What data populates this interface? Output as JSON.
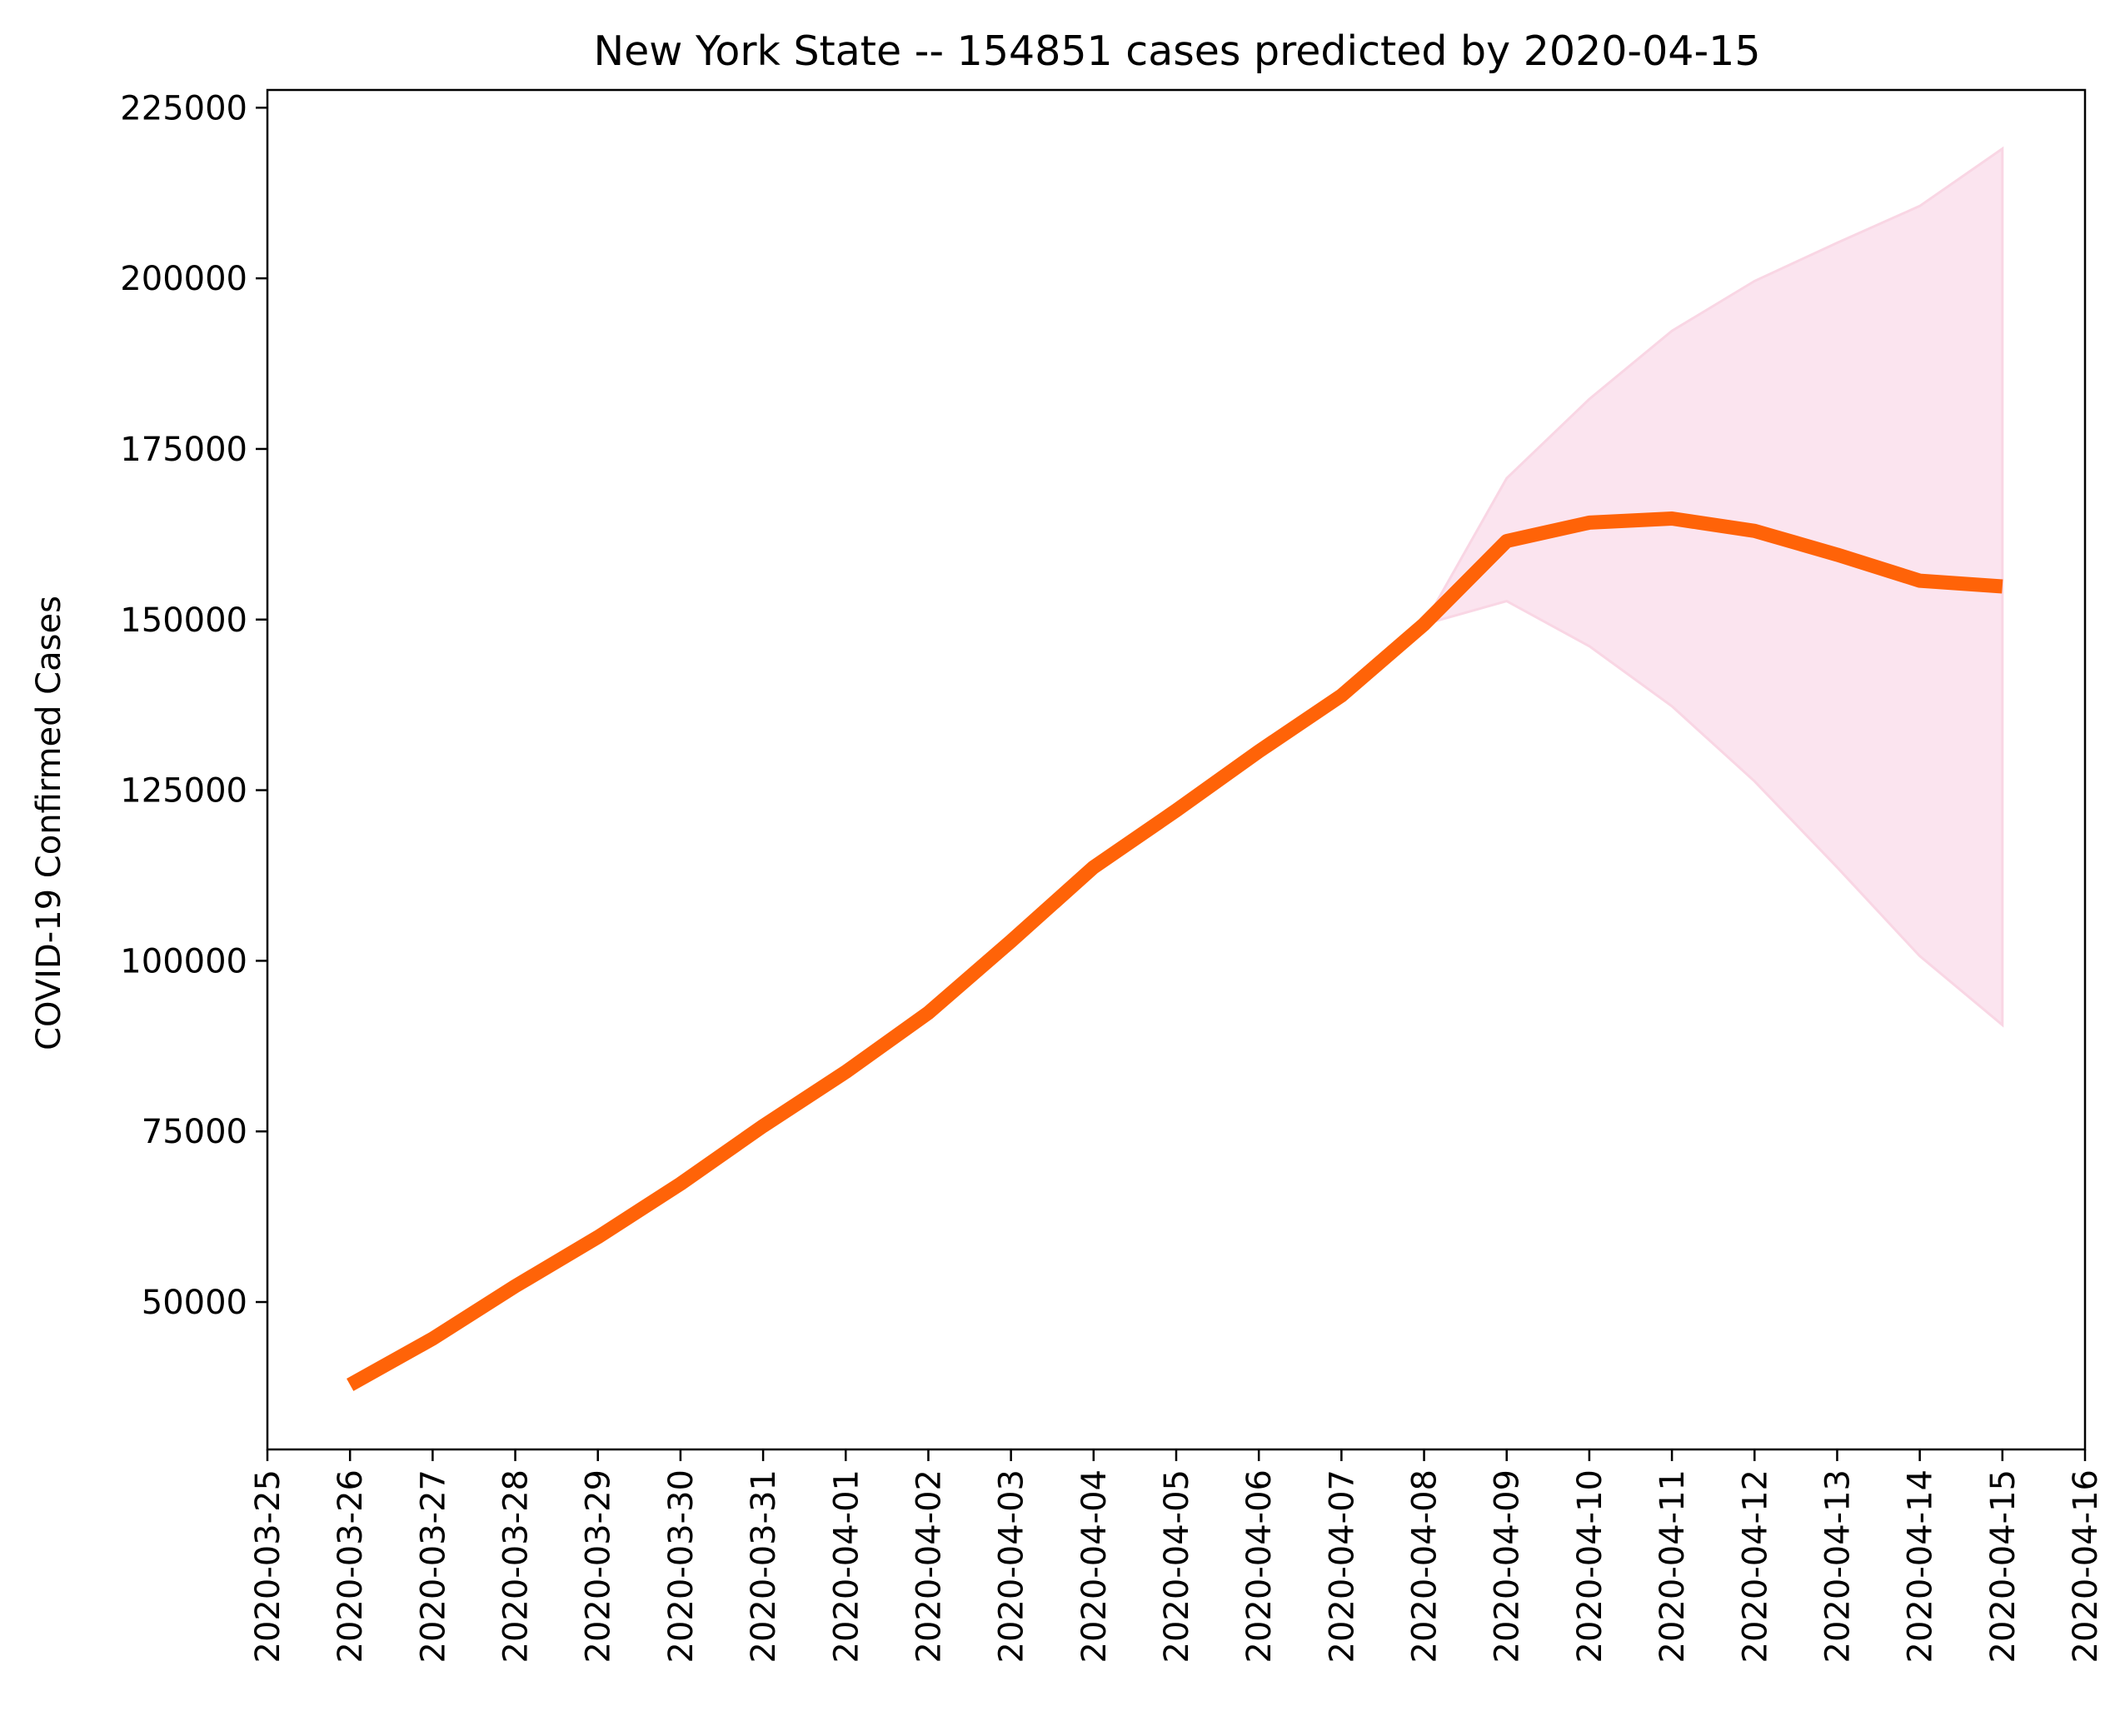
{
  "chart_data": {
    "type": "line",
    "title": "New York State  --  154851 cases predicted by 2020-04-15",
    "xlabel": "",
    "ylabel": "COVID-19 Confirmed Cases",
    "ylim": [
      28400,
      227600
    ],
    "xlim": [
      "2020-03-25",
      "2020-04-16"
    ],
    "grid": false,
    "colors": {
      "line": "#ff6308",
      "band": "#fbe4ef",
      "band_edge": "#f9d6e4"
    },
    "x_ticks": [
      "2020-03-25",
      "2020-03-26",
      "2020-03-27",
      "2020-03-28",
      "2020-03-29",
      "2020-03-30",
      "2020-03-31",
      "2020-04-01",
      "2020-04-02",
      "2020-04-03",
      "2020-04-04",
      "2020-04-05",
      "2020-04-06",
      "2020-04-07",
      "2020-04-08",
      "2020-04-09",
      "2020-04-10",
      "2020-04-11",
      "2020-04-12",
      "2020-04-13",
      "2020-04-14",
      "2020-04-15",
      "2020-04-16"
    ],
    "y_ticks": [
      50000,
      75000,
      100000,
      125000,
      150000,
      175000,
      200000,
      225000
    ],
    "series": [
      {
        "x": [
          "2020-03-26",
          "2020-03-27",
          "2020-03-28",
          "2020-03-29",
          "2020-03-30",
          "2020-03-31",
          "2020-04-01",
          "2020-04-02",
          "2020-04-03",
          "2020-04-04",
          "2020-04-05",
          "2020-04-06",
          "2020-04-07",
          "2020-04-08",
          "2020-04-09",
          "2020-04-10",
          "2020-04-11",
          "2020-04-12",
          "2020-04-13",
          "2020-04-14",
          "2020-04-15"
        ],
        "values": [
          37877,
          44635,
          52318,
          59513,
          67325,
          75795,
          83712,
          92381,
          102863,
          113704,
          122031,
          130689,
          138863,
          149316,
          161504,
          164200,
          164800,
          163000,
          159500,
          155700,
          154851
        ]
      }
    ],
    "band": {
      "x": [
        "2020-04-08",
        "2020-04-09",
        "2020-04-10",
        "2020-04-11",
        "2020-04-12",
        "2020-04-13",
        "2020-04-14",
        "2020-04-15"
      ],
      "upper": [
        149316,
        170700,
        182300,
        192300,
        199600,
        205200,
        210600,
        219000
      ],
      "lower": [
        149316,
        152700,
        146100,
        137300,
        126300,
        113700,
        100700,
        90600
      ]
    }
  }
}
